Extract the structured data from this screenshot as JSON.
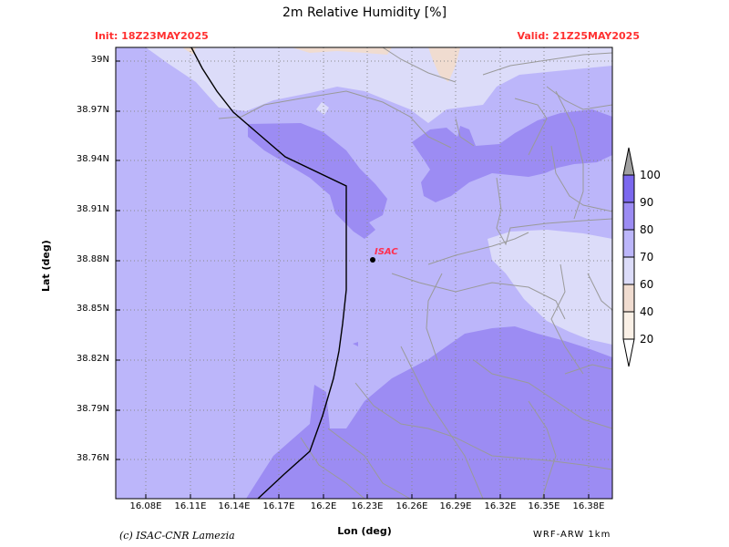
{
  "map": {
    "title": "2m Relative Humidity [%]",
    "init_label": "Init: 18Z23MAY2025",
    "valid_label": "Valid: 21Z25MAY2025",
    "x_axis_title": "Lon (deg)",
    "y_axis_title": "Lat (deg)",
    "credit": "(c) ISAC-CNR Lamezia",
    "model": "WRF-ARW 1km",
    "station": {
      "name": "ISAC",
      "lon": 16.235,
      "lat": 38.88
    },
    "lon_ticks": [
      "16.08E",
      "16.11E",
      "16.14E",
      "16.17E",
      "16.2E",
      "16.23E",
      "16.26E",
      "16.29E",
      "16.32E",
      "16.35E",
      "16.38E"
    ],
    "lat_ticks": [
      "39N",
      "38.97N",
      "38.94N",
      "38.91N",
      "38.88N",
      "38.85N",
      "38.82N",
      "38.79N",
      "38.76N"
    ]
  },
  "colorbar": {
    "labels": [
      "100",
      "90",
      "80",
      "70",
      "60",
      "40",
      "20"
    ],
    "colors": {
      "over_100": "#a0a0a0",
      "90_100": "#7b68ee",
      "80_90": "#9c8cf3",
      "70_80": "#bcb6fa",
      "60_70": "#dcdcf9",
      "40_60": "#f0dcd0",
      "20_40": "#faf0e6",
      "under_20": "#ffffff"
    }
  },
  "legend_colors": {
    "station": "#ff3050",
    "init_valid_text": "#ff3030",
    "coastline": "#000000",
    "roads": "#9a9a9a"
  }
}
